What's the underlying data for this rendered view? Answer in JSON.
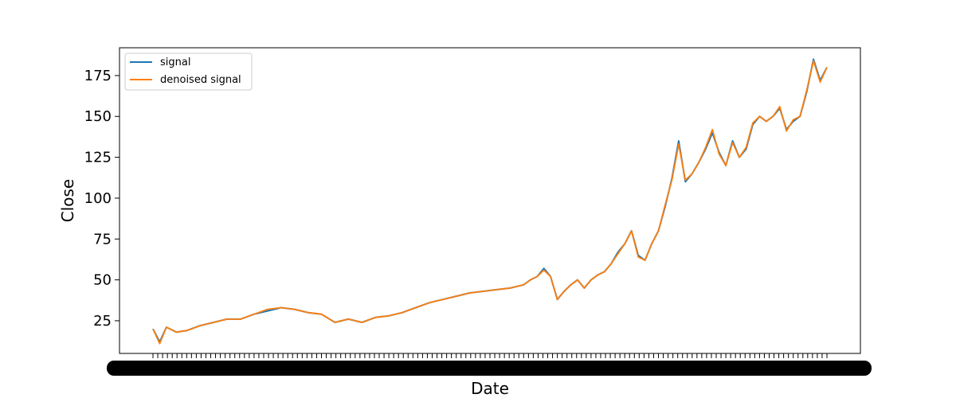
{
  "chart_data": {
    "type": "line",
    "xlabel": "Date",
    "ylabel": "Close",
    "ylim": [
      5,
      192
    ],
    "yticks": [
      25,
      50,
      75,
      100,
      125,
      150,
      175
    ],
    "grid": false,
    "legend_position": "upper-left",
    "x_tick_labels_overlapping": true,
    "series": [
      {
        "name": "signal",
        "color": "#1f77b4",
        "x": [
          0.0,
          0.01,
          0.02,
          0.035,
          0.05,
          0.07,
          0.09,
          0.11,
          0.13,
          0.15,
          0.17,
          0.19,
          0.21,
          0.23,
          0.25,
          0.27,
          0.29,
          0.31,
          0.33,
          0.35,
          0.37,
          0.39,
          0.41,
          0.43,
          0.45,
          0.47,
          0.49,
          0.51,
          0.53,
          0.55,
          0.56,
          0.57,
          0.58,
          0.59,
          0.6,
          0.61,
          0.62,
          0.63,
          0.64,
          0.65,
          0.66,
          0.67,
          0.68,
          0.69,
          0.7,
          0.71,
          0.72,
          0.73,
          0.74,
          0.75,
          0.76,
          0.77,
          0.78,
          0.79,
          0.8,
          0.81,
          0.82,
          0.83,
          0.84,
          0.85,
          0.86,
          0.87,
          0.88,
          0.89,
          0.9,
          0.91,
          0.92,
          0.93,
          0.94,
          0.95,
          0.96,
          0.97,
          0.98,
          0.99,
          1.0
        ],
        "values": [
          20,
          12,
          21,
          18,
          19,
          22,
          24,
          26,
          26,
          29,
          31,
          33,
          32,
          30,
          29,
          24,
          26,
          24,
          27,
          28,
          30,
          33,
          36,
          38,
          40,
          42,
          43,
          44,
          45,
          47,
          50,
          52,
          57,
          52,
          38,
          43,
          47,
          50,
          45,
          50,
          53,
          55,
          60,
          67,
          72,
          80,
          65,
          62,
          72,
          80,
          95,
          112,
          135,
          110,
          115,
          122,
          130,
          140,
          128,
          120,
          135,
          125,
          130,
          145,
          150,
          147,
          150,
          155,
          142,
          147,
          150,
          165,
          185,
          172,
          180
        ]
      },
      {
        "name": "denoised signal",
        "color": "#ff7f0e",
        "x": [
          0.0,
          0.01,
          0.02,
          0.035,
          0.05,
          0.07,
          0.09,
          0.11,
          0.13,
          0.15,
          0.17,
          0.19,
          0.21,
          0.23,
          0.25,
          0.27,
          0.29,
          0.31,
          0.33,
          0.35,
          0.37,
          0.39,
          0.41,
          0.43,
          0.45,
          0.47,
          0.49,
          0.51,
          0.53,
          0.55,
          0.56,
          0.57,
          0.58,
          0.59,
          0.6,
          0.61,
          0.62,
          0.63,
          0.64,
          0.65,
          0.66,
          0.67,
          0.68,
          0.69,
          0.7,
          0.71,
          0.72,
          0.73,
          0.74,
          0.75,
          0.76,
          0.77,
          0.78,
          0.79,
          0.8,
          0.81,
          0.82,
          0.83,
          0.84,
          0.85,
          0.86,
          0.87,
          0.88,
          0.89,
          0.9,
          0.91,
          0.92,
          0.93,
          0.94,
          0.95,
          0.96,
          0.97,
          0.98,
          0.99,
          1.0
        ],
        "values": [
          20,
          11,
          21,
          18,
          19,
          22,
          24,
          26,
          26,
          29,
          32,
          33,
          32,
          30,
          29,
          24,
          26,
          24,
          27,
          28,
          30,
          33,
          36,
          38,
          40,
          42,
          43,
          44,
          45,
          47,
          50,
          52,
          56,
          52,
          38,
          43,
          47,
          50,
          45,
          50,
          53,
          55,
          60,
          66,
          72,
          80,
          64,
          62,
          72,
          80,
          96,
          111,
          133,
          111,
          115,
          122,
          131,
          142,
          127,
          120,
          134,
          125,
          131,
          146,
          150,
          147,
          150,
          156,
          141,
          148,
          150,
          166,
          184,
          171,
          180
        ]
      }
    ]
  }
}
